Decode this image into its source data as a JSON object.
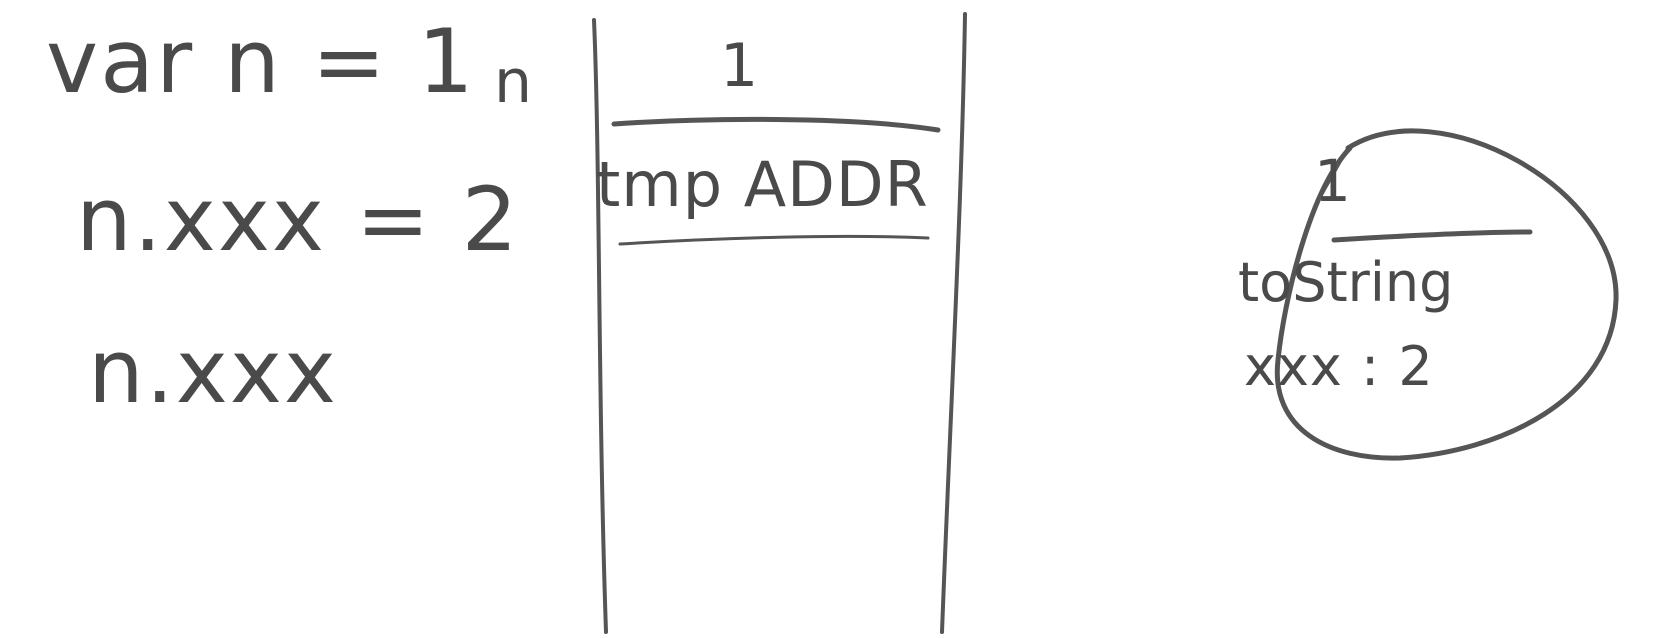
{
  "code": {
    "lines": [
      "var  n = 1",
      "n.xxx  = 2",
      "n.xxx"
    ]
  },
  "stack": {
    "variable_label": "n",
    "value": "1",
    "entry": "tmp  ADDR"
  },
  "heap_object": {
    "value": "1",
    "method": "toString",
    "property": "xxx : 2"
  },
  "colors": {
    "ink": "#4a4a4a",
    "background": "#ffffff"
  }
}
